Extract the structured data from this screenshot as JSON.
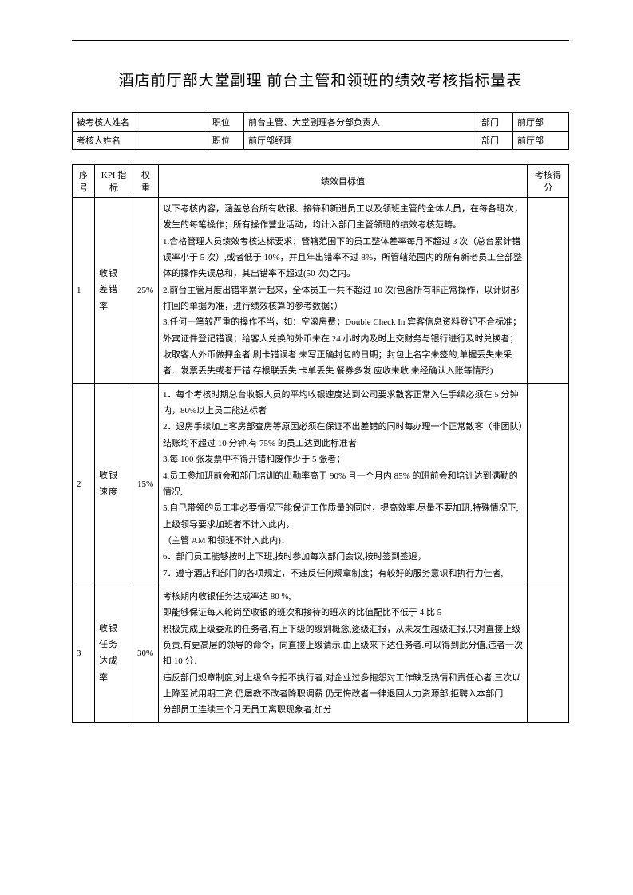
{
  "title": "酒店前厅部大堂副理 前台主管和领班的绩效考核指标量表",
  "header": {
    "rows": [
      {
        "label1": "被考核人姓名",
        "value1": "",
        "label2": "职位",
        "value2": "前台主管、大堂副理各分部负责人",
        "label3": "部门",
        "value3": "前厅部"
      },
      {
        "label1": "考核人姓名",
        "value1": "",
        "label2": "职位",
        "value2": "前厅部经理",
        "label3": "部门",
        "value3": "前厅部"
      }
    ]
  },
  "kpi": {
    "columns": {
      "seq": "序号",
      "indicator": "KPI 指标",
      "weight": "权重",
      "target": "绩效目标值",
      "score": "考核得分"
    },
    "rows": [
      {
        "seq": "1",
        "indicator": "收银差错率",
        "weight": "25%",
        "target": "以下考核内容，涵盖总台所有收银、接待和新进员工以及领班主管的全体人员，在每各班次，发生的每笔操作；所有操作营业活动，均计入部门主管领班的绩效考核范畴。\n1.合格管理人员绩效考核达标要求：管辖范围下的员工整体差率每月不超过 3 次（总台累计错误率小于 5 次）,或者低于 10%，并且年出错率不过 8%，所管辖范围内的所有新老员工全部整体的操作失误总和，其出错率不超过(50 次)之内。\n2.前台主管月度出错率累计起来，全体员工一共不超过 10 次(包含所有非正常操作，以计财部打回的单据为准，进行绩效核算的参考数据；）\n3.任何一笔较严重的操作不当，如：空滚房费；Double Check In 宾客信息资料登记不合标准；外宾证件登记错误；给客人兑换的外币未在 24 小时内及时上交财务与银行进行及时兑换者；收取客人外币做押金者.刷卡错误者.未写正确封包的日期；封包上名字未签的,单据丢失未采者．发票丢失或者开错.存根联丢失.卡单丢失.餐券多发.应收未收.未经确认入账等情形)",
        "score": ""
      },
      {
        "seq": "2",
        "indicator": "收银速度",
        "weight": "15%",
        "target": "1．每个考核时期总台收银人员的平均收银速度达到公司要求散客正常入住手续必须在 5 分钟内，80%以上员工能达标者\n2．退房手续加上客房部查房等原因必须在保证不出差错的同时每办理一个正常散客（非团队）结账均不超过 10 分钟,有 75% 的员工达到此标准者\n3.每 100 张发票中不得开错和废作少于 5 张者；\n4.员工参加班前会和部门培训的出勤率高于 90% 且一个月内 85% 的班前会和培训达到满勤的情况,\n5.自己带领的员工非必要情况下能保证工作质量的同时，提高效率.尽量不要加班,特殊情况下,上级领导要求加班者不计入此内，\n（主管 AM 和领班不计入此内)．\n6．部门员工能够按时上下班,按时参加每次部门会议,按时签到签退，\n7．遵守酒店和部门的各项规定，不违反任何规章制度；有较好的服务意识和执行力佳者,",
        "score": ""
      },
      {
        "seq": "3",
        "indicator": "收银任务达成率",
        "weight": "30%",
        "target": "考核期内收银任务达成率达 80 %,\n即能够保证每人轮岗至收银的班次和接待的班次的比值配比不低于 4 比 5\n积极完成上级委派的任务者,有上下级的级别概念,逐级汇报，从未发生越级汇报,只对直接上级负责,有更高层的领导的命令，向直接上级请示,由上级来下达任务者.可以得到此分值,违者一次扣 10 分．\n违反部门规章制度,对上级命令拒不执行者,对企业过多抱怨对工作缺乏热情和责任心者,三次以上降至试用期工资.仍屡教不改者降职调薪.仍无悔改者一律退回人力资源部,拒聘入本部门.\n分部员工连续三个月无员工离职现象者,加分",
        "score": ""
      }
    ]
  }
}
